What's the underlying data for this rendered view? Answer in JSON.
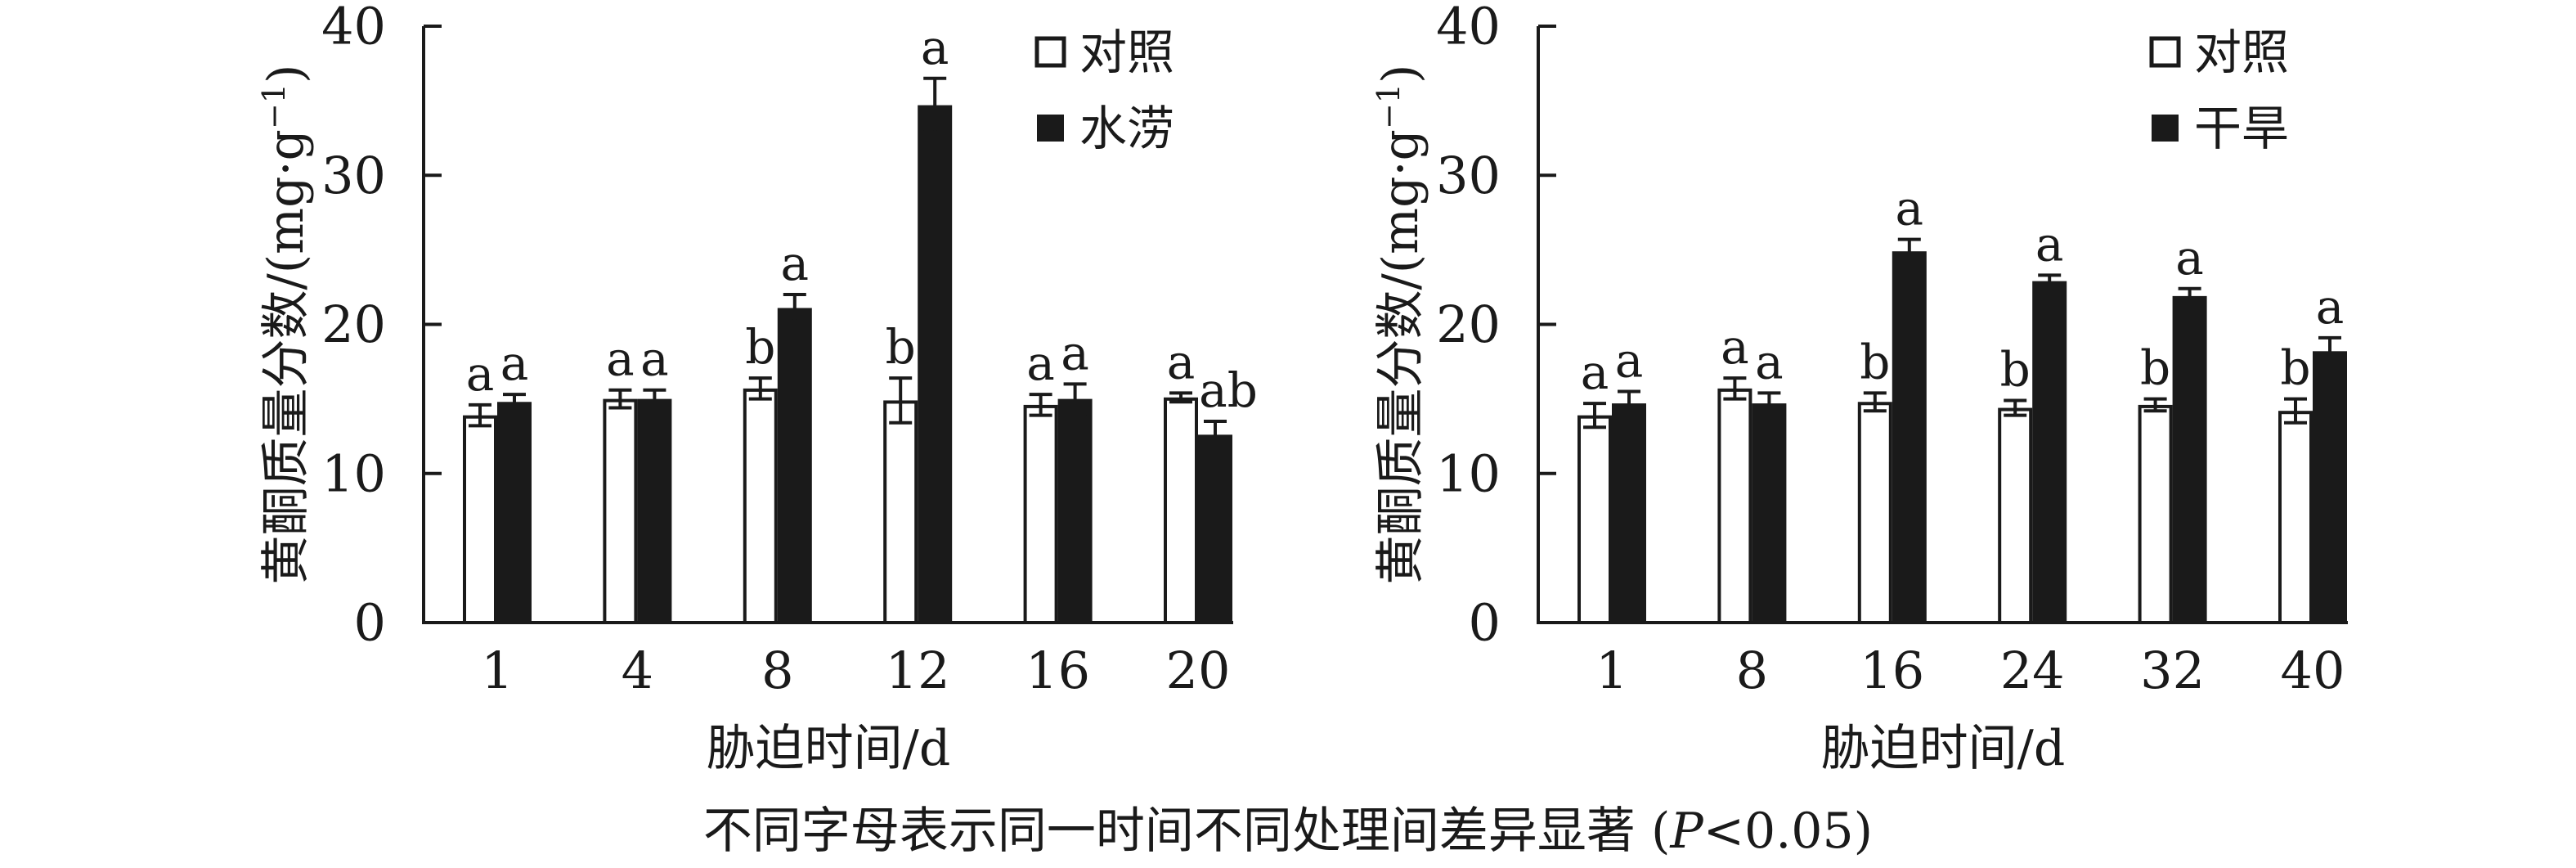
{
  "figure": {
    "caption": {
      "main": "不同字母表示同一时间不同处理间差异显著 (",
      "p_italic": "P",
      "rest": "<0.05)"
    }
  },
  "colors": {
    "ink": "#1a1a1a",
    "bar_control_fill": "#ffffff",
    "bar_treatment_fill": "#1a1a1a"
  },
  "chart_data": [
    {
      "type": "bar",
      "title": "",
      "xlabel": "胁迫时间/d",
      "ylabel": "黄酮质量分数/(mg·g−1)",
      "ylabel_parts": {
        "prefix": "黄酮质量分数/(mg·g",
        "sup": "−1",
        "suffix": ")"
      },
      "ylim": [
        0,
        40
      ],
      "yticks": [
        0,
        10,
        20,
        30,
        40
      ],
      "grid": false,
      "legend_position": "top-right-inside",
      "categories": [
        "1",
        "4",
        "8",
        "12",
        "16",
        "20"
      ],
      "series": [
        {
          "name": "对照",
          "style": "open",
          "values": [
            13.9,
            15.0,
            15.7,
            14.9,
            14.6,
            15.1
          ],
          "errors": [
            0.7,
            0.6,
            0.7,
            1.5,
            0.7,
            0.3
          ],
          "letters": [
            "a",
            "a",
            "b",
            "b",
            "a",
            "a"
          ]
        },
        {
          "name": "水涝",
          "style": "filled",
          "values": [
            14.8,
            15.0,
            21.1,
            34.7,
            15.0,
            12.6
          ],
          "errors": [
            0.5,
            0.6,
            0.9,
            1.8,
            1.0,
            0.9
          ],
          "letters": [
            "a",
            "a",
            "a",
            "a",
            "a",
            "ab"
          ]
        }
      ]
    },
    {
      "type": "bar",
      "title": "",
      "xlabel": "胁迫时间/d",
      "ylabel": "黄酮质量分数/(mg·g−1)",
      "ylabel_parts": {
        "prefix": "黄酮质量分数/(mg·g",
        "sup": "−1",
        "suffix": ")"
      },
      "ylim": [
        0,
        40
      ],
      "yticks": [
        0,
        10,
        20,
        30,
        40
      ],
      "grid": false,
      "legend_position": "top-right-inside",
      "categories": [
        "1",
        "8",
        "16",
        "24",
        "32",
        "40"
      ],
      "series": [
        {
          "name": "对照",
          "style": "open",
          "values": [
            13.9,
            15.7,
            14.8,
            14.4,
            14.6,
            14.2
          ],
          "errors": [
            0.8,
            0.7,
            0.6,
            0.5,
            0.4,
            0.8
          ],
          "letters": [
            "a",
            "a",
            "b",
            "b",
            "b",
            "b"
          ]
        },
        {
          "name": "干旱",
          "style": "filled",
          "values": [
            14.7,
            14.7,
            24.9,
            22.9,
            21.9,
            18.2
          ],
          "errors": [
            0.8,
            0.7,
            0.8,
            0.4,
            0.5,
            0.9
          ],
          "letters": [
            "a",
            "a",
            "a",
            "a",
            "a",
            "a"
          ]
        }
      ]
    }
  ]
}
